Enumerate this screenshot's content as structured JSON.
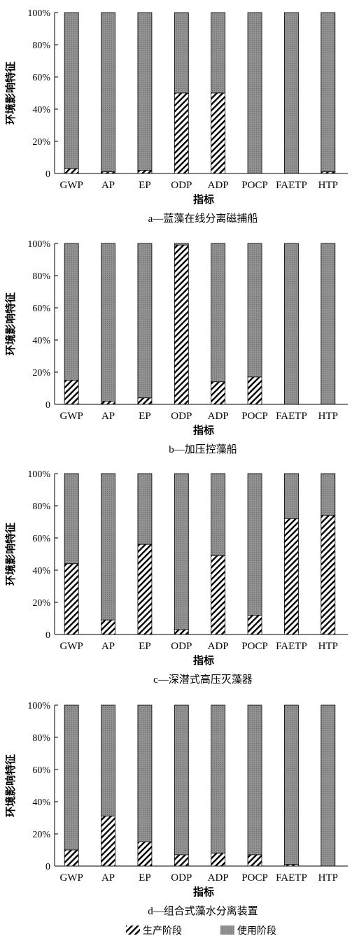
{
  "colors": {
    "usage_fill": "#8c8c8c",
    "production_hatch": "#000000",
    "axis": "#000000"
  },
  "y_tick_labels": [
    "0",
    "20%",
    "40%",
    "60%",
    "80%",
    "100%"
  ],
  "legend": {
    "production_label": "生产阶段",
    "usage_label": "使用阶段",
    "production_pattern": "diagonal-hatch",
    "usage_pattern": "gray-dotted"
  },
  "chart_data": [
    {
      "type": "bar",
      "stacked": true,
      "title": "a—蓝藻在线分离磁捕船",
      "xlabel": "指标",
      "ylabel": "环境影响特征",
      "ylim": [
        0,
        100
      ],
      "categories": [
        "GWP",
        "AP",
        "EP",
        "ODP",
        "ADP",
        "POCP",
        "FAETP",
        "HTP"
      ],
      "series": [
        {
          "name": "生产阶段",
          "values": [
            3,
            1,
            2,
            50,
            50,
            0,
            0,
            1
          ]
        },
        {
          "name": "使用阶段",
          "values": [
            97,
            99,
            98,
            50,
            50,
            100,
            100,
            99
          ]
        }
      ]
    },
    {
      "type": "bar",
      "stacked": true,
      "title": "b—加压控藻船",
      "xlabel": "指标",
      "ylabel": "环境影响特征",
      "ylim": [
        0,
        100
      ],
      "categories": [
        "GWP",
        "AP",
        "EP",
        "ODP",
        "ADP",
        "POCP",
        "FAETP",
        "HTP"
      ],
      "series": [
        {
          "name": "生产阶段",
          "values": [
            15,
            2,
            4,
            99,
            14,
            17,
            0,
            0
          ]
        },
        {
          "name": "使用阶段",
          "values": [
            85,
            98,
            96,
            1,
            86,
            83,
            100,
            100
          ]
        }
      ]
    },
    {
      "type": "bar",
      "stacked": true,
      "title": "c—深潜式高压灭藻器",
      "xlabel": "指标",
      "ylabel": "环境影响特征",
      "ylim": [
        0,
        100
      ],
      "categories": [
        "GWP",
        "AP",
        "EP",
        "ODP",
        "ADP",
        "POCP",
        "FAETP",
        "HTP"
      ],
      "series": [
        {
          "name": "生产阶段",
          "values": [
            44,
            9,
            56,
            3,
            49,
            12,
            72,
            74
          ]
        },
        {
          "name": "使用阶段",
          "values": [
            56,
            91,
            44,
            97,
            51,
            88,
            28,
            26
          ]
        }
      ]
    },
    {
      "type": "bar",
      "stacked": true,
      "title": "d—组合式藻水分离装置",
      "xlabel": "指标",
      "ylabel": "环境影响特征",
      "ylim": [
        0,
        100
      ],
      "categories": [
        "GWP",
        "AP",
        "EP",
        "ODP",
        "ADP",
        "POCP",
        "FAETP",
        "HTP"
      ],
      "series": [
        {
          "name": "生产阶段",
          "values": [
            10,
            31,
            15,
            7,
            8,
            7,
            1,
            0
          ]
        },
        {
          "name": "使用阶段",
          "values": [
            90,
            69,
            85,
            93,
            92,
            93,
            99,
            100
          ]
        }
      ]
    }
  ]
}
